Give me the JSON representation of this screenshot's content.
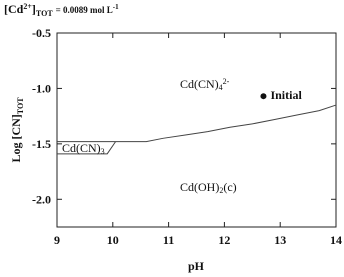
{
  "chart_data": {
    "type": "line",
    "title": {
      "a": "[Cd",
      "sup": "2+",
      "b": "]",
      "sub": "TOT",
      "c": "= 0.0089 mol L",
      "sup2": "-1"
    },
    "x_label": "pH",
    "y_label": {
      "text": "Log [CN]",
      "sub": "TOT"
    },
    "xlim": [
      9,
      14
    ],
    "xticks": [
      9,
      10,
      11,
      12,
      13,
      14
    ],
    "ylim": [
      -2.25,
      -0.5
    ],
    "yticks": [
      -0.5,
      {
        "value": -1.0,
        "label": "-1.0"
      },
      -1.5,
      {
        "value": -2.0,
        "label": "-2.0"
      }
    ],
    "color": "#444444",
    "series": [
      {
        "x": [
          9,
          10.6,
          10.9,
          11.3,
          11.7,
          12.1,
          12.5,
          12.9,
          13.3,
          13.7,
          14
        ],
        "values": [
          -1.48,
          -1.48,
          -1.45,
          -1.42,
          -1.39,
          -1.35,
          -1.32,
          -1.28,
          -1.24,
          -1.2,
          -1.15
        ]
      },
      {
        "x": [
          9,
          9.9,
          10.05
        ],
        "values": [
          -1.59,
          -1.59,
          -1.48
        ]
      }
    ],
    "points": [
      {
        "label": "Initial",
        "x": 12.7,
        "y": -1.07
      }
    ],
    "annotations": [
      {
        "text": "Cd(CN)",
        "sub": "4",
        "sup": "2-"
      },
      {
        "text": "Cd(CN)",
        "sub": "3"
      },
      {
        "text": "Cd(OH)",
        "sub": "2",
        "text2": "(c)"
      }
    ]
  }
}
